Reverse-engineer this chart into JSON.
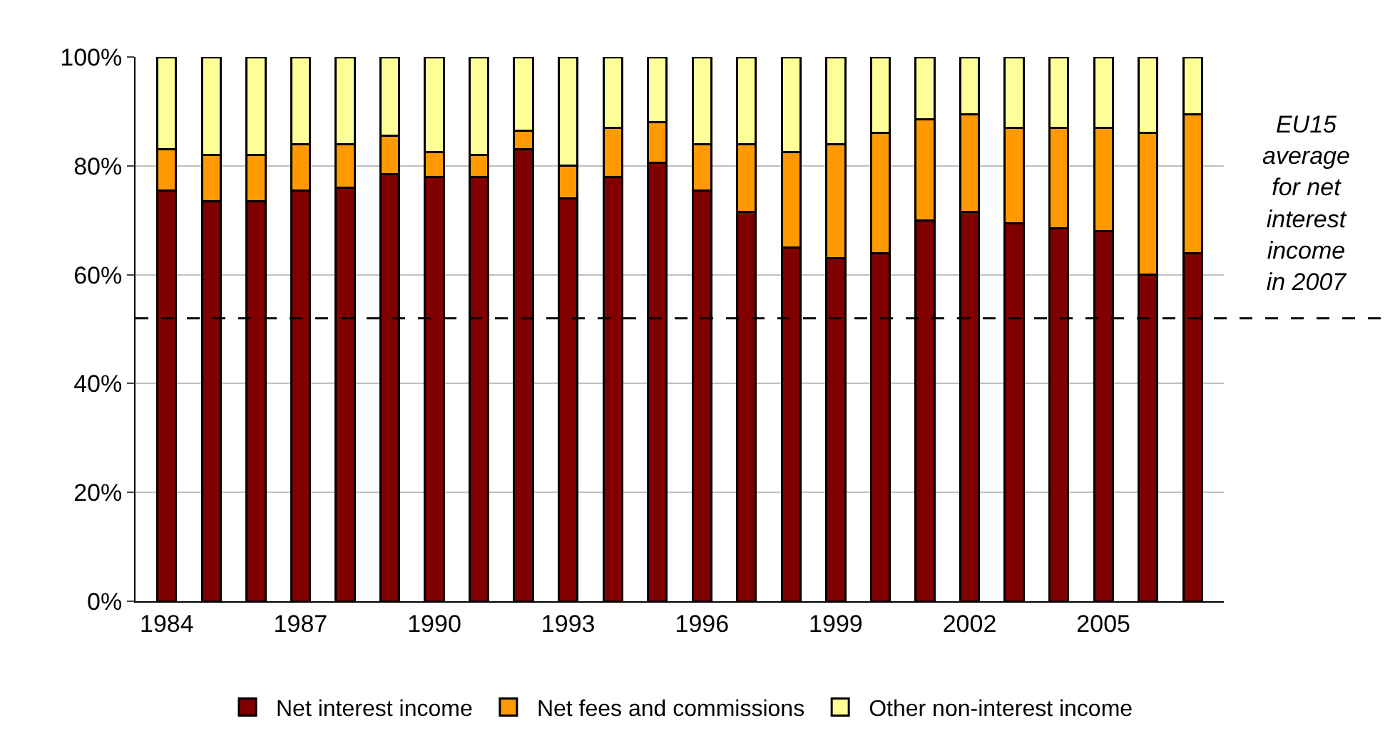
{
  "chart_data": {
    "type": "bar",
    "stacked": true,
    "x": [
      1984,
      1985,
      1986,
      1987,
      1988,
      1989,
      1990,
      1991,
      1992,
      1993,
      1994,
      1995,
      1996,
      1997,
      1998,
      1999,
      2000,
      2001,
      2002,
      2003,
      2004,
      2005,
      2006,
      2007
    ],
    "series": [
      {
        "name": "Net interest income",
        "color": "#800000",
        "values": [
          75.5,
          73.5,
          73.5,
          75.5,
          76,
          78.5,
          78,
          78,
          83,
          74,
          78,
          80.5,
          75.5,
          71.5,
          65,
          63,
          64,
          70,
          71.5,
          69.5,
          68.5,
          68,
          60,
          64
        ]
      },
      {
        "name": "Net fees and commissions",
        "color": "#ff9900",
        "values": [
          7.5,
          8.5,
          8.5,
          8.5,
          8,
          7,
          4.5,
          4,
          3.5,
          6,
          9,
          7.5,
          8.5,
          12.5,
          17.5,
          21,
          22,
          18.5,
          18,
          17.5,
          18.5,
          19,
          26,
          25.5
        ]
      },
      {
        "name": "Other non-interest income",
        "color": "#ffff99",
        "values": [
          17,
          18,
          18,
          16,
          16,
          14.5,
          17.5,
          18,
          13.5,
          20,
          13,
          12,
          16,
          16,
          17.5,
          16,
          14,
          11.5,
          10.5,
          13,
          13,
          13,
          14,
          10.5
        ]
      }
    ],
    "xlim": [
      1983.3,
      2007.7
    ],
    "xticks": [
      1984,
      1987,
      1990,
      1993,
      1996,
      1999,
      2002,
      2005
    ],
    "ylim": [
      0,
      100
    ],
    "yticks": [
      {
        "value": 0,
        "label": "0%"
      },
      {
        "value": 20,
        "label": "20%"
      },
      {
        "value": 40,
        "label": "40%"
      },
      {
        "value": 60,
        "label": "60%"
      },
      {
        "value": 80,
        "label": "80%"
      },
      {
        "value": 100,
        "label": "100%"
      }
    ],
    "grid": "y",
    "legend": "bottom",
    "ref_lines": [
      {
        "axis": "y",
        "value": 52,
        "label": "EU15 average for net interest income in 2007",
        "color": "#000000",
        "line_style": "dashed"
      }
    ]
  }
}
